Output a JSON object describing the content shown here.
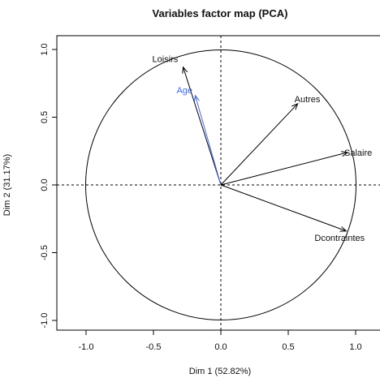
{
  "chart_data": {
    "type": "scatter",
    "subtype": "pca-correlation-circle",
    "title": "Variables factor map (PCA)",
    "xlabel": "Dim 1 (52.82%)",
    "ylabel": "Dim 2 (31.17%)",
    "xlim": [
      -1.2,
      1.2
    ],
    "ylim": [
      -1.05,
      1.05
    ],
    "xticks": [
      -1.0,
      -0.5,
      0.0,
      0.5,
      1.0
    ],
    "yticks": [
      -1.0,
      -0.5,
      0.0,
      0.5,
      1.0
    ],
    "xtick_labels": [
      "-1.0",
      "-0.5",
      "0.0",
      "0.5",
      "1.0"
    ],
    "ytick_labels": [
      "-1.0",
      "-0.5",
      "0.0",
      "0.5",
      "1.0"
    ],
    "grid": false,
    "reference_lines": [
      0
    ],
    "unit_circle": true,
    "variables": [
      {
        "name": "Loisirs",
        "x": -0.28,
        "y": 0.87,
        "color": "#000000",
        "kind": "active"
      },
      {
        "name": "Age",
        "x": -0.19,
        "y": 0.66,
        "color": "#4169E1",
        "kind": "supplementary"
      },
      {
        "name": "Autres",
        "x": 0.57,
        "y": 0.6,
        "color": "#000000",
        "kind": "active"
      },
      {
        "name": "Salaire",
        "x": 0.94,
        "y": 0.24,
        "color": "#000000",
        "kind": "active"
      },
      {
        "name": "Dcontraintes",
        "x": 0.93,
        "y": -0.34,
        "color": "#000000",
        "kind": "active"
      }
    ]
  }
}
